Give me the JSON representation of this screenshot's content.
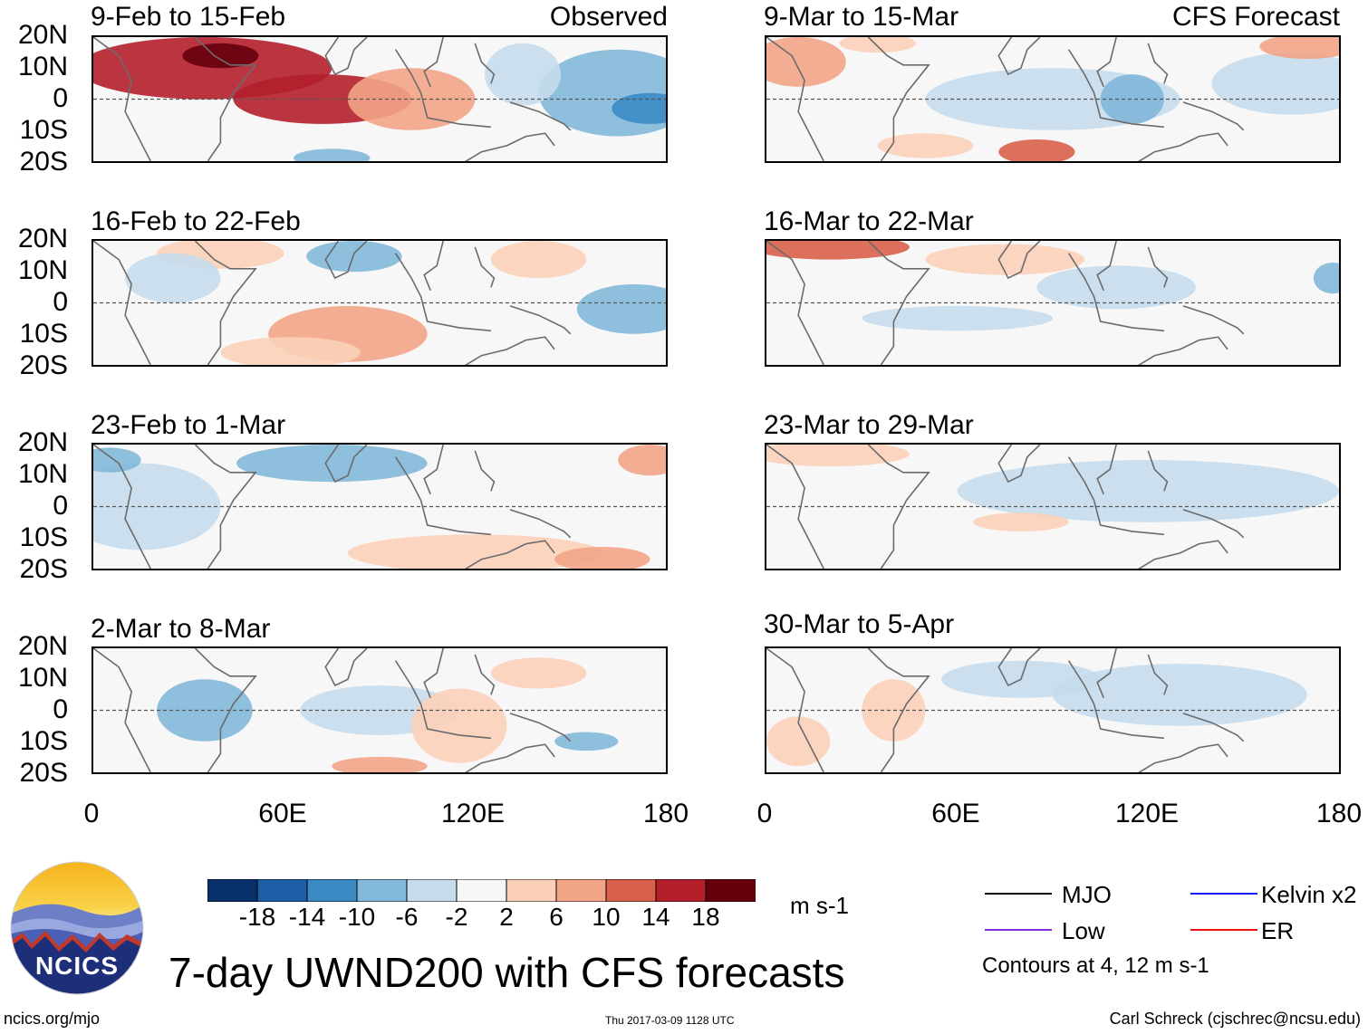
{
  "chart_data": {
    "type": "heatmap",
    "title": "7-day UWND200 with CFS forecasts",
    "variable": "UWND200",
    "units": "m s-1",
    "xlim": [
      0,
      180
    ],
    "ylim": [
      -20,
      20
    ],
    "x_ticks": [
      "0",
      "60E",
      "120E",
      "180"
    ],
    "y_ticks": [
      "20N",
      "10N",
      "0",
      "10S",
      "20S"
    ],
    "colorbar": {
      "levels": [
        "-18",
        "-14",
        "-10",
        "-6",
        "-2",
        "2",
        "6",
        "10",
        "14",
        "18"
      ],
      "colors": [
        "#08306b",
        "#1c5ea8",
        "#3b8ac4",
        "#82b8d9",
        "#c5dcec",
        "#f7f7f7",
        "#fbd0b9",
        "#f2a486",
        "#d9604a",
        "#b41f2c",
        "#67000d"
      ]
    },
    "columns": [
      {
        "label": "Observed",
        "panels": [
          {
            "title": "9-Feb to 15-Feb",
            "blobs": [
              {
                "x": 35,
                "y": 10,
                "rx": 40,
                "ry": 10,
                "c": 9
              },
              {
                "x": 72,
                "y": 0,
                "rx": 28,
                "ry": 8,
                "c": 9
              },
              {
                "x": 40,
                "y": 14,
                "rx": 12,
                "ry": 4,
                "c": 10
              },
              {
                "x": 100,
                "y": 0,
                "rx": 20,
                "ry": 10,
                "c": 7
              },
              {
                "x": 165,
                "y": 2,
                "rx": 25,
                "ry": 14,
                "c": 3
              },
              {
                "x": 175,
                "y": -3,
                "rx": 12,
                "ry": 5,
                "c": 2
              },
              {
                "x": 75,
                "y": -19,
                "rx": 12,
                "ry": 3,
                "c": 3
              },
              {
                "x": 135,
                "y": 8,
                "rx": 12,
                "ry": 10,
                "c": 4
              }
            ]
          },
          {
            "title": "16-Feb to 22-Feb",
            "blobs": [
              {
                "x": 80,
                "y": -10,
                "rx": 25,
                "ry": 9,
                "c": 7
              },
              {
                "x": 62,
                "y": -16,
                "rx": 22,
                "ry": 5,
                "c": 6
              },
              {
                "x": 40,
                "y": 16,
                "rx": 20,
                "ry": 5,
                "c": 6
              },
              {
                "x": 82,
                "y": 15,
                "rx": 15,
                "ry": 5,
                "c": 3
              },
              {
                "x": 25,
                "y": 8,
                "rx": 15,
                "ry": 8,
                "c": 4
              },
              {
                "x": 170,
                "y": -2,
                "rx": 18,
                "ry": 8,
                "c": 3
              },
              {
                "x": 140,
                "y": 14,
                "rx": 15,
                "ry": 6,
                "c": 6
              }
            ]
          },
          {
            "title": "23-Feb to 1-Mar",
            "blobs": [
              {
                "x": 75,
                "y": 14,
                "rx": 30,
                "ry": 6,
                "c": 3
              },
              {
                "x": 15,
                "y": 0,
                "rx": 25,
                "ry": 14,
                "c": 4
              },
              {
                "x": 120,
                "y": -15,
                "rx": 40,
                "ry": 6,
                "c": 6
              },
              {
                "x": 160,
                "y": -17,
                "rx": 15,
                "ry": 4,
                "c": 7
              },
              {
                "x": 175,
                "y": 15,
                "rx": 10,
                "ry": 5,
                "c": 7
              },
              {
                "x": 5,
                "y": 15,
                "rx": 10,
                "ry": 4,
                "c": 3
              }
            ]
          },
          {
            "title": "2-Mar to 8-Mar",
            "blobs": [
              {
                "x": 35,
                "y": 0,
                "rx": 15,
                "ry": 10,
                "c": 3
              },
              {
                "x": 90,
                "y": 0,
                "rx": 25,
                "ry": 8,
                "c": 4
              },
              {
                "x": 115,
                "y": -5,
                "rx": 15,
                "ry": 12,
                "c": 6
              },
              {
                "x": 90,
                "y": -18,
                "rx": 15,
                "ry": 3,
                "c": 7
              },
              {
                "x": 155,
                "y": -10,
                "rx": 10,
                "ry": 3,
                "c": 3
              },
              {
                "x": 140,
                "y": 12,
                "rx": 15,
                "ry": 5,
                "c": 6
              }
            ]
          }
        ]
      },
      {
        "label": "CFS Forecast",
        "panels": [
          {
            "title": "9-Mar to 15-Mar",
            "blobs": [
              {
                "x": 10,
                "y": 12,
                "rx": 15,
                "ry": 8,
                "c": 7
              },
              {
                "x": 35,
                "y": 18,
                "rx": 12,
                "ry": 3,
                "c": 6
              },
              {
                "x": 90,
                "y": 0,
                "rx": 40,
                "ry": 10,
                "c": 4
              },
              {
                "x": 115,
                "y": 0,
                "rx": 10,
                "ry": 8,
                "c": 3
              },
              {
                "x": 165,
                "y": 5,
                "rx": 25,
                "ry": 10,
                "c": 4
              },
              {
                "x": 85,
                "y": -17,
                "rx": 12,
                "ry": 4,
                "c": 8
              },
              {
                "x": 170,
                "y": 17,
                "rx": 15,
                "ry": 4,
                "c": 7
              },
              {
                "x": 50,
                "y": -15,
                "rx": 15,
                "ry": 4,
                "c": 6
              }
            ]
          },
          {
            "title": "16-Mar to 22-Mar",
            "blobs": [
              {
                "x": 20,
                "y": 18,
                "rx": 25,
                "ry": 4,
                "c": 8
              },
              {
                "x": 75,
                "y": 14,
                "rx": 25,
                "ry": 5,
                "c": 6
              },
              {
                "x": 110,
                "y": 5,
                "rx": 25,
                "ry": 7,
                "c": 4
              },
              {
                "x": 178,
                "y": 8,
                "rx": 6,
                "ry": 5,
                "c": 3
              },
              {
                "x": 60,
                "y": -5,
                "rx": 30,
                "ry": 4,
                "c": 4
              }
            ]
          },
          {
            "title": "23-Mar to 29-Mar",
            "blobs": [
              {
                "x": 20,
                "y": 17,
                "rx": 25,
                "ry": 4,
                "c": 6
              },
              {
                "x": 120,
                "y": 5,
                "rx": 60,
                "ry": 10,
                "c": 4
              },
              {
                "x": 80,
                "y": -5,
                "rx": 15,
                "ry": 3,
                "c": 6
              }
            ]
          },
          {
            "title": "30-Mar to 5-Apr",
            "blobs": [
              {
                "x": 80,
                "y": 10,
                "rx": 25,
                "ry": 6,
                "c": 4
              },
              {
                "x": 130,
                "y": 5,
                "rx": 40,
                "ry": 10,
                "c": 4
              },
              {
                "x": 40,
                "y": 0,
                "rx": 10,
                "ry": 10,
                "c": 6
              },
              {
                "x": 10,
                "y": -10,
                "rx": 10,
                "ry": 8,
                "c": 6
              }
            ]
          }
        ]
      }
    ],
    "legend": {
      "items": [
        {
          "label": "MJO",
          "color": "#000000"
        },
        {
          "label": "Kelvin x2",
          "color": "#1a1aff"
        },
        {
          "label": "Low",
          "color": "#8a2be2"
        },
        {
          "label": "ER",
          "color": "#ee1111"
        }
      ],
      "note": "Contours at 4, 12 m s-1"
    }
  },
  "footer": {
    "logo_text": "NCICS",
    "website": "ncics.org/mjo",
    "timestamp": "Thu 2017-03-09 1128 UTC",
    "author": "Carl Schreck (cjschrec@ncsu.edu)"
  }
}
